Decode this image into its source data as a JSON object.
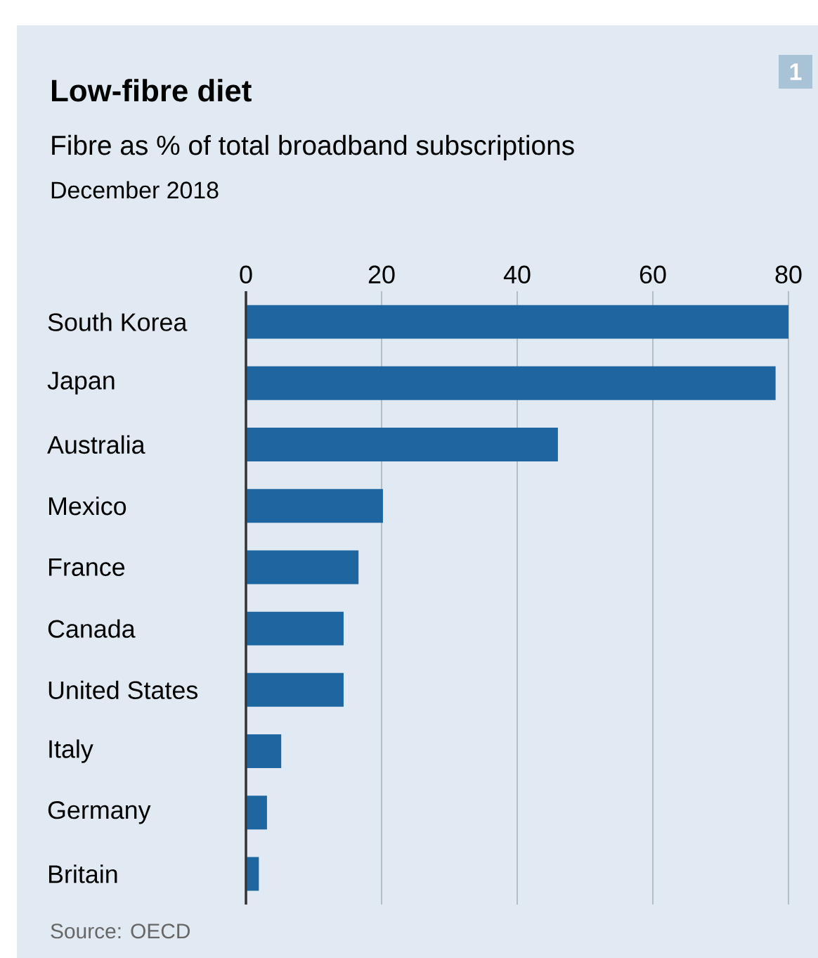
{
  "chart_data": {
    "type": "bar",
    "orientation": "horizontal",
    "title": "Low-fibre diet",
    "subtitle": "Fibre as % of total broadband subscriptions",
    "categories": [
      "South Korea",
      "Japan",
      "Australia",
      "Mexico",
      "France",
      "Canada",
      "United States",
      "Italy",
      "Germany",
      "Britain"
    ],
    "values": [
      80,
      78.1,
      46.0,
      20.2,
      16.6,
      14.4,
      14.4,
      5.2,
      3.1,
      1.9
    ],
    "color": "#1d669f",
    "xlim": [
      0,
      80
    ],
    "xticks": [
      0,
      20,
      40,
      60,
      80
    ],
    "grid": "x",
    "annotations": [
      "December 2018",
      "Source: OECD",
      "1"
    ]
  }
}
